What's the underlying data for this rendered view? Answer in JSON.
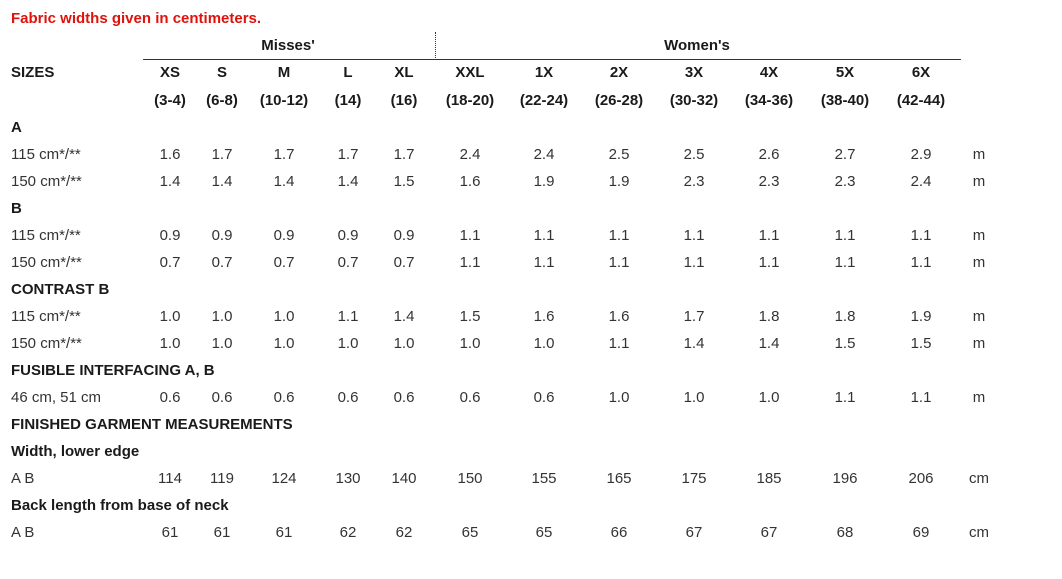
{
  "note": "Fabric widths given in centimeters.",
  "groups": {
    "misses": "Misses'",
    "women": "Women's"
  },
  "sizes_label": "SIZES",
  "sizes": [
    "XS",
    "S",
    "M",
    "L",
    "XL",
    "XXL",
    "1X",
    "2X",
    "3X",
    "4X",
    "5X",
    "6X"
  ],
  "size_ranges": [
    "(3-4)",
    "(6-8)",
    "(10-12)",
    "(14)",
    "(16)",
    "(18-20)",
    "(22-24)",
    "(26-28)",
    "(30-32)",
    "(34-36)",
    "(38-40)",
    "(42-44)"
  ],
  "rows": [
    {
      "type": "section",
      "label": "A"
    },
    {
      "type": "data",
      "label": "115 cm*/**",
      "values": [
        "1.6",
        "1.7",
        "1.7",
        "1.7",
        "1.7",
        "2.4",
        "2.4",
        "2.5",
        "2.5",
        "2.6",
        "2.7",
        "2.9"
      ],
      "unit": "m"
    },
    {
      "type": "data",
      "label": "150 cm*/**",
      "values": [
        "1.4",
        "1.4",
        "1.4",
        "1.4",
        "1.5",
        "1.6",
        "1.9",
        "1.9",
        "2.3",
        "2.3",
        "2.3",
        "2.4"
      ],
      "unit": "m"
    },
    {
      "type": "section",
      "label": "B"
    },
    {
      "type": "data",
      "label": "115 cm*/**",
      "values": [
        "0.9",
        "0.9",
        "0.9",
        "0.9",
        "0.9",
        "1.1",
        "1.1",
        "1.1",
        "1.1",
        "1.1",
        "1.1",
        "1.1"
      ],
      "unit": "m"
    },
    {
      "type": "data",
      "label": "150 cm*/**",
      "values": [
        "0.7",
        "0.7",
        "0.7",
        "0.7",
        "0.7",
        "1.1",
        "1.1",
        "1.1",
        "1.1",
        "1.1",
        "1.1",
        "1.1"
      ],
      "unit": "m"
    },
    {
      "type": "section",
      "label": "CONTRAST B"
    },
    {
      "type": "data",
      "label": "115 cm*/**",
      "values": [
        "1.0",
        "1.0",
        "1.0",
        "1.1",
        "1.4",
        "1.5",
        "1.6",
        "1.6",
        "1.7",
        "1.8",
        "1.8",
        "1.9"
      ],
      "unit": "m"
    },
    {
      "type": "data",
      "label": "150 cm*/**",
      "values": [
        "1.0",
        "1.0",
        "1.0",
        "1.0",
        "1.0",
        "1.0",
        "1.0",
        "1.1",
        "1.4",
        "1.4",
        "1.5",
        "1.5"
      ],
      "unit": "m"
    },
    {
      "type": "section",
      "label": "FUSIBLE INTERFACING A, B"
    },
    {
      "type": "data",
      "label": "46 cm, 51 cm",
      "values": [
        "0.6",
        "0.6",
        "0.6",
        "0.6",
        "0.6",
        "0.6",
        "0.6",
        "1.0",
        "1.0",
        "1.0",
        "1.1",
        "1.1"
      ],
      "unit": "m"
    },
    {
      "type": "section",
      "label": "FINISHED GARMENT MEASUREMENTS"
    },
    {
      "type": "section",
      "label": "Width, lower edge"
    },
    {
      "type": "data",
      "label": "A B",
      "values": [
        "114",
        "119",
        "124",
        "130",
        "140",
        "150",
        "155",
        "165",
        "175",
        "185",
        "196",
        "206"
      ],
      "unit": "cm"
    },
    {
      "type": "section",
      "label": "Back length from base of neck"
    },
    {
      "type": "data",
      "label": "A B",
      "values": [
        "61",
        "61",
        "61",
        "62",
        "62",
        "65",
        "65",
        "66",
        "67",
        "67",
        "68",
        "69"
      ],
      "unit": "cm"
    }
  ]
}
